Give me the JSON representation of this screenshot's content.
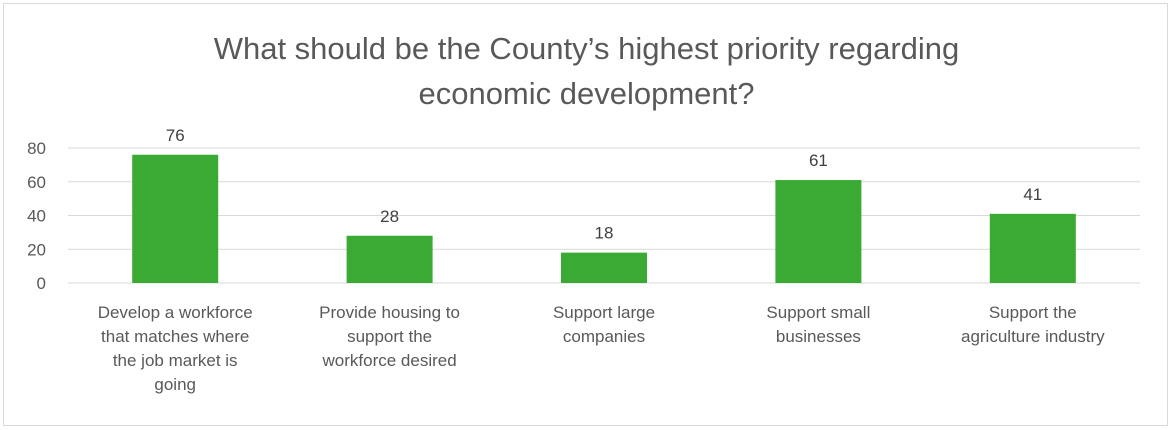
{
  "chart_data": {
    "type": "bar",
    "title_lines": [
      "What should be the County’s highest priority regarding",
      "economic development?"
    ],
    "categories": [
      [
        "Develop a workforce",
        "that matches where",
        "the job market is",
        "going"
      ],
      [
        "Provide housing to",
        "support the",
        "workforce desired"
      ],
      [
        "Support large",
        "companies"
      ],
      [
        "Support small",
        "businesses"
      ],
      [
        "Support the",
        "agriculture industry"
      ]
    ],
    "values": [
      76,
      28,
      18,
      61,
      41
    ],
    "y_ticks": [
      "0",
      "20",
      "40",
      "60",
      "80"
    ],
    "ylim": [
      0,
      80
    ],
    "grid": true,
    "bar_color": "#3aaa35",
    "grid_color": "#d9d9d9"
  }
}
